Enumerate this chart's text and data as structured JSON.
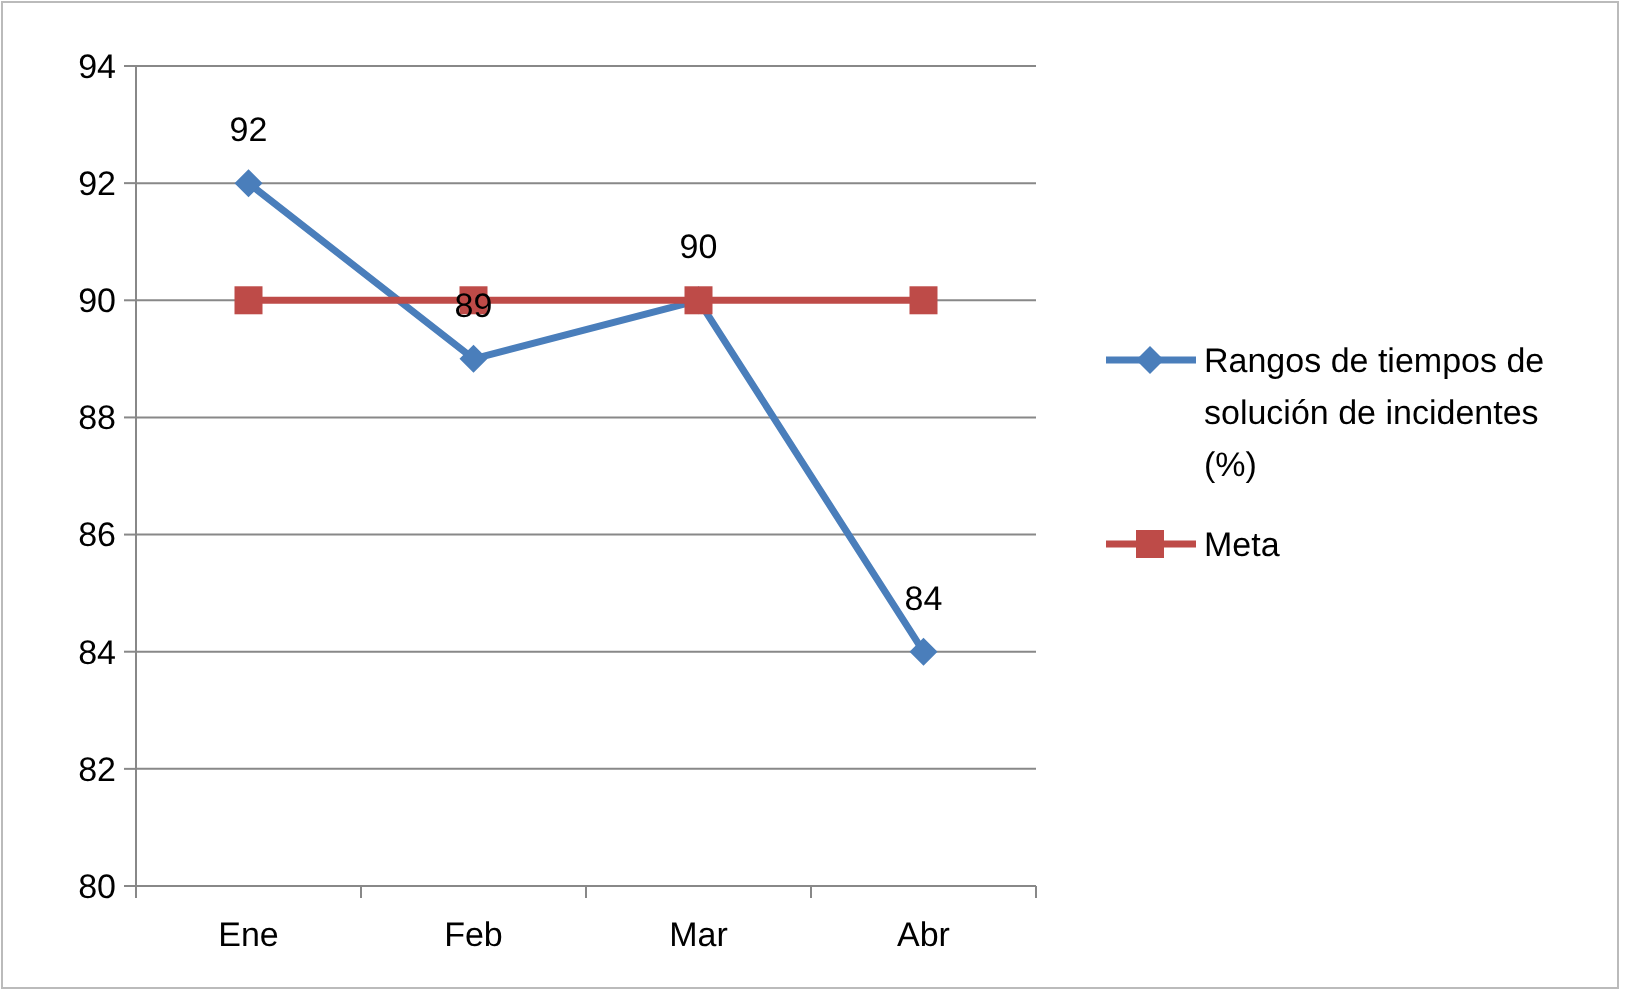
{
  "chart_data": {
    "type": "line",
    "categories": [
      "Ene",
      "Feb",
      "Mar",
      "Abr"
    ],
    "series": [
      {
        "name": "Rangos de tiempos de solución de incidentes (%)",
        "color": "#4a7ebb",
        "values": [
          92,
          89,
          90,
          84
        ],
        "marker": "diamond",
        "value_labels": [
          "92",
          "89",
          "90",
          "84"
        ]
      },
      {
        "name": "Meta",
        "color": "#be4b48",
        "values": [
          90,
          90,
          90,
          90
        ],
        "marker": "square"
      }
    ],
    "ylim": [
      80,
      94
    ],
    "yticks": [
      80,
      82,
      84,
      86,
      88,
      90,
      92,
      94
    ],
    "grid": "y",
    "legend": "right",
    "line_style": "solid"
  }
}
